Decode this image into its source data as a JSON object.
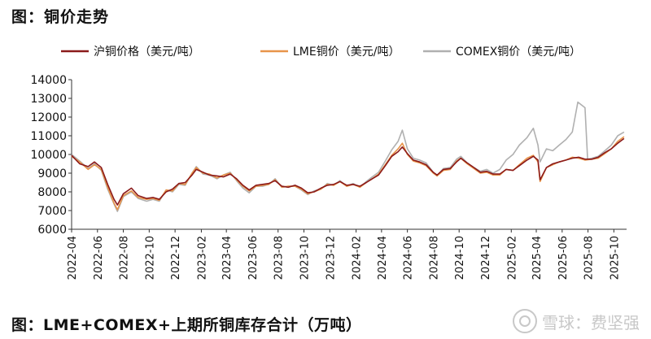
{
  "header": {
    "title": "图：铜价走势"
  },
  "footer": {
    "caption": "图：LME+COMEX+上期所铜库存合计（万吨）"
  },
  "watermark": {
    "text": "雪球：费坚强"
  },
  "chart_data": {
    "type": "line",
    "title": "",
    "xlabel": "",
    "ylabel": "",
    "ylim": [
      6000,
      14000
    ],
    "yticks": [
      6000,
      7000,
      8000,
      9000,
      10000,
      11000,
      12000,
      13000,
      14000
    ],
    "xrange": [
      "2022-04",
      "2025-10"
    ],
    "xticks": [
      "2022-04",
      "2022-06",
      "2022-08",
      "2022-10",
      "2022-12",
      "2023-02",
      "2023-04",
      "2023-06",
      "2023-08",
      "2023-10",
      "2023-12",
      "2024-02",
      "2024-04",
      "2024-06",
      "2024-08",
      "2024-10",
      "2024-12",
      "2025-02",
      "2025-04",
      "2025-06",
      "2025-08",
      "2025-10"
    ],
    "legend_position": "top",
    "grid": false,
    "series": [
      {
        "name": "沪铜价格（美元/吨）",
        "color": "#8b1a1a",
        "points": [
          [
            "2022-04-01",
            9950
          ],
          [
            "2022-04-20",
            9500
          ],
          [
            "2022-05-10",
            9350
          ],
          [
            "2022-05-25",
            9600
          ],
          [
            "2022-06-10",
            9300
          ],
          [
            "2022-06-25",
            8400
          ],
          [
            "2022-07-10",
            7600
          ],
          [
            "2022-07-18",
            7300
          ],
          [
            "2022-08-01",
            7900
          ],
          [
            "2022-08-20",
            8200
          ],
          [
            "2022-09-05",
            7800
          ],
          [
            "2022-09-25",
            7650
          ],
          [
            "2022-10-10",
            7700
          ],
          [
            "2022-10-25",
            7600
          ],
          [
            "2022-11-10",
            8000
          ],
          [
            "2022-11-25",
            8150
          ],
          [
            "2022-12-10",
            8450
          ],
          [
            "2022-12-25",
            8500
          ],
          [
            "2023-01-10",
            8900
          ],
          [
            "2023-01-20",
            9200
          ],
          [
            "2023-02-05",
            9050
          ],
          [
            "2023-02-20",
            8900
          ],
          [
            "2023-03-10",
            8850
          ],
          [
            "2023-03-25",
            8800
          ],
          [
            "2023-04-10",
            8950
          ],
          [
            "2023-04-25",
            8700
          ],
          [
            "2023-05-10",
            8350
          ],
          [
            "2023-05-25",
            8100
          ],
          [
            "2023-06-10",
            8350
          ],
          [
            "2023-06-25",
            8400
          ],
          [
            "2023-07-10",
            8450
          ],
          [
            "2023-07-25",
            8600
          ],
          [
            "2023-08-10",
            8300
          ],
          [
            "2023-08-25",
            8250
          ],
          [
            "2023-09-10",
            8350
          ],
          [
            "2023-09-25",
            8200
          ],
          [
            "2023-10-10",
            7950
          ],
          [
            "2023-10-25",
            8000
          ],
          [
            "2023-11-10",
            8200
          ],
          [
            "2023-11-25",
            8350
          ],
          [
            "2023-12-10",
            8400
          ],
          [
            "2023-12-25",
            8550
          ],
          [
            "2024-01-10",
            8350
          ],
          [
            "2024-01-25",
            8400
          ],
          [
            "2024-02-10",
            8300
          ],
          [
            "2024-02-25",
            8500
          ],
          [
            "2024-03-10",
            8700
          ],
          [
            "2024-03-25",
            8900
          ],
          [
            "2024-04-10",
            9400
          ],
          [
            "2024-04-25",
            9900
          ],
          [
            "2024-05-10",
            10150
          ],
          [
            "2024-05-20",
            10400
          ],
          [
            "2024-06-01",
            10050
          ],
          [
            "2024-06-15",
            9700
          ],
          [
            "2024-06-30",
            9600
          ],
          [
            "2024-07-15",
            9450
          ],
          [
            "2024-08-01",
            9050
          ],
          [
            "2024-08-10",
            8900
          ],
          [
            "2024-08-25",
            9200
          ],
          [
            "2024-09-10",
            9250
          ],
          [
            "2024-09-25",
            9600
          ],
          [
            "2024-10-05",
            9800
          ],
          [
            "2024-10-20",
            9550
          ],
          [
            "2024-11-05",
            9300
          ],
          [
            "2024-11-20",
            9050
          ],
          [
            "2024-12-05",
            9100
          ],
          [
            "2024-12-20",
            8950
          ],
          [
            "2025-01-05",
            8950
          ],
          [
            "2025-01-20",
            9200
          ],
          [
            "2025-02-05",
            9150
          ],
          [
            "2025-02-20",
            9400
          ],
          [
            "2025-03-10",
            9700
          ],
          [
            "2025-03-25",
            9900
          ],
          [
            "2025-04-05",
            9700
          ],
          [
            "2025-04-10",
            8650
          ],
          [
            "2025-04-25",
            9300
          ],
          [
            "2025-05-10",
            9500
          ],
          [
            "2025-05-25",
            9600
          ],
          [
            "2025-06-10",
            9700
          ],
          [
            "2025-06-25",
            9800
          ],
          [
            "2025-07-10",
            9850
          ],
          [
            "2025-07-25",
            9750
          ],
          [
            "2025-08-10",
            9750
          ],
          [
            "2025-08-25",
            9850
          ],
          [
            "2025-09-10",
            10100
          ],
          [
            "2025-09-25",
            10300
          ],
          [
            "2025-10-10",
            10600
          ],
          [
            "2025-10-25",
            10850
          ]
        ]
      },
      {
        "name": "LME铜价（美元/吨）",
        "color": "#e8944a",
        "points": [
          [
            "2022-04-01",
            9900
          ],
          [
            "2022-04-20",
            9600
          ],
          [
            "2022-05-10",
            9200
          ],
          [
            "2022-05-25",
            9450
          ],
          [
            "2022-06-10",
            9200
          ],
          [
            "2022-06-25",
            8250
          ],
          [
            "2022-07-10",
            7400
          ],
          [
            "2022-07-18",
            7050
          ],
          [
            "2022-08-01",
            7800
          ],
          [
            "2022-08-20",
            8050
          ],
          [
            "2022-09-05",
            7700
          ],
          [
            "2022-09-25",
            7600
          ],
          [
            "2022-10-10",
            7650
          ],
          [
            "2022-10-25",
            7550
          ],
          [
            "2022-11-10",
            8100
          ],
          [
            "2022-11-25",
            8050
          ],
          [
            "2022-12-10",
            8450
          ],
          [
            "2022-12-25",
            8400
          ],
          [
            "2023-01-10",
            9000
          ],
          [
            "2023-01-20",
            9300
          ],
          [
            "2023-02-05",
            9000
          ],
          [
            "2023-02-20",
            8950
          ],
          [
            "2023-03-10",
            8750
          ],
          [
            "2023-03-25",
            8900
          ],
          [
            "2023-04-10",
            9000
          ],
          [
            "2023-04-25",
            8650
          ],
          [
            "2023-05-10",
            8300
          ],
          [
            "2023-05-25",
            8050
          ],
          [
            "2023-06-10",
            8300
          ],
          [
            "2023-06-25",
            8350
          ],
          [
            "2023-07-10",
            8400
          ],
          [
            "2023-07-25",
            8650
          ],
          [
            "2023-08-10",
            8250
          ],
          [
            "2023-08-25",
            8300
          ],
          [
            "2023-09-10",
            8300
          ],
          [
            "2023-09-25",
            8150
          ],
          [
            "2023-10-10",
            7900
          ],
          [
            "2023-10-25",
            8000
          ],
          [
            "2023-11-10",
            8150
          ],
          [
            "2023-11-25",
            8400
          ],
          [
            "2023-12-10",
            8350
          ],
          [
            "2023-12-25",
            8550
          ],
          [
            "2024-01-10",
            8300
          ],
          [
            "2024-01-25",
            8400
          ],
          [
            "2024-02-10",
            8250
          ],
          [
            "2024-02-25",
            8500
          ],
          [
            "2024-03-10",
            8700
          ],
          [
            "2024-03-25",
            8950
          ],
          [
            "2024-04-10",
            9450
          ],
          [
            "2024-04-25",
            9950
          ],
          [
            "2024-05-10",
            10300
          ],
          [
            "2024-05-20",
            10600
          ],
          [
            "2024-06-01",
            10000
          ],
          [
            "2024-06-15",
            9650
          ],
          [
            "2024-06-30",
            9550
          ],
          [
            "2024-07-15",
            9400
          ],
          [
            "2024-08-01",
            9000
          ],
          [
            "2024-08-10",
            8850
          ],
          [
            "2024-08-25",
            9150
          ],
          [
            "2024-09-10",
            9200
          ],
          [
            "2024-09-25",
            9650
          ],
          [
            "2024-10-05",
            9800
          ],
          [
            "2024-10-20",
            9500
          ],
          [
            "2024-11-05",
            9250
          ],
          [
            "2024-11-20",
            9000
          ],
          [
            "2024-12-05",
            9050
          ],
          [
            "2024-12-20",
            8900
          ],
          [
            "2025-01-05",
            8900
          ],
          [
            "2025-01-20",
            9200
          ],
          [
            "2025-02-05",
            9150
          ],
          [
            "2025-02-20",
            9450
          ],
          [
            "2025-03-10",
            9800
          ],
          [
            "2025-03-25",
            9950
          ],
          [
            "2025-04-05",
            9600
          ],
          [
            "2025-04-10",
            8550
          ],
          [
            "2025-04-25",
            9300
          ],
          [
            "2025-05-10",
            9450
          ],
          [
            "2025-05-25",
            9600
          ],
          [
            "2025-06-10",
            9700
          ],
          [
            "2025-06-25",
            9850
          ],
          [
            "2025-07-10",
            9800
          ],
          [
            "2025-07-25",
            9700
          ],
          [
            "2025-08-10",
            9750
          ],
          [
            "2025-08-25",
            9800
          ],
          [
            "2025-09-10",
            10050
          ],
          [
            "2025-09-25",
            10300
          ],
          [
            "2025-10-10",
            10700
          ],
          [
            "2025-10-25",
            10950
          ]
        ]
      },
      {
        "name": "COMEX铜价（美元/吨）",
        "color": "#b0b0b0",
        "points": [
          [
            "2022-04-01",
            10000
          ],
          [
            "2022-04-20",
            9650
          ],
          [
            "2022-05-10",
            9250
          ],
          [
            "2022-05-25",
            9500
          ],
          [
            "2022-06-10",
            9150
          ],
          [
            "2022-06-25",
            8150
          ],
          [
            "2022-07-10",
            7350
          ],
          [
            "2022-07-18",
            6950
          ],
          [
            "2022-08-01",
            7750
          ],
          [
            "2022-08-20",
            8000
          ],
          [
            "2022-09-05",
            7650
          ],
          [
            "2022-09-25",
            7500
          ],
          [
            "2022-10-10",
            7600
          ],
          [
            "2022-10-25",
            7500
          ],
          [
            "2022-11-10",
            8100
          ],
          [
            "2022-11-25",
            8000
          ],
          [
            "2022-12-10",
            8400
          ],
          [
            "2022-12-25",
            8350
          ],
          [
            "2023-01-10",
            9000
          ],
          [
            "2023-01-20",
            9350
          ],
          [
            "2023-02-05",
            8950
          ],
          [
            "2023-02-20",
            8900
          ],
          [
            "2023-03-10",
            8700
          ],
          [
            "2023-03-25",
            8900
          ],
          [
            "2023-04-10",
            9050
          ],
          [
            "2023-04-25",
            8600
          ],
          [
            "2023-05-10",
            8200
          ],
          [
            "2023-05-25",
            7950
          ],
          [
            "2023-06-10",
            8300
          ],
          [
            "2023-06-25",
            8300
          ],
          [
            "2023-07-10",
            8400
          ],
          [
            "2023-07-25",
            8700
          ],
          [
            "2023-08-10",
            8250
          ],
          [
            "2023-08-25",
            8300
          ],
          [
            "2023-09-10",
            8300
          ],
          [
            "2023-09-25",
            8100
          ],
          [
            "2023-10-10",
            7850
          ],
          [
            "2023-10-25",
            8050
          ],
          [
            "2023-11-10",
            8150
          ],
          [
            "2023-11-25",
            8450
          ],
          [
            "2023-12-10",
            8350
          ],
          [
            "2023-12-25",
            8600
          ],
          [
            "2024-01-10",
            8300
          ],
          [
            "2024-01-25",
            8450
          ],
          [
            "2024-02-10",
            8250
          ],
          [
            "2024-02-25",
            8550
          ],
          [
            "2024-03-10",
            8800
          ],
          [
            "2024-03-25",
            9050
          ],
          [
            "2024-04-10",
            9650
          ],
          [
            "2024-04-25",
            10250
          ],
          [
            "2024-05-10",
            10700
          ],
          [
            "2024-05-20",
            11300
          ],
          [
            "2024-06-01",
            10300
          ],
          [
            "2024-06-15",
            9800
          ],
          [
            "2024-06-30",
            9700
          ],
          [
            "2024-07-15",
            9550
          ],
          [
            "2024-08-01",
            9050
          ],
          [
            "2024-08-10",
            8850
          ],
          [
            "2024-08-25",
            9250
          ],
          [
            "2024-09-10",
            9300
          ],
          [
            "2024-09-25",
            9750
          ],
          [
            "2024-10-05",
            9900
          ],
          [
            "2024-10-20",
            9550
          ],
          [
            "2024-11-05",
            9300
          ],
          [
            "2024-11-20",
            9100
          ],
          [
            "2024-12-05",
            9200
          ],
          [
            "2024-12-20",
            9000
          ],
          [
            "2025-01-05",
            9200
          ],
          [
            "2025-01-20",
            9700
          ],
          [
            "2025-02-05",
            10000
          ],
          [
            "2025-02-20",
            10500
          ],
          [
            "2025-03-10",
            10900
          ],
          [
            "2025-03-25",
            11400
          ],
          [
            "2025-04-05",
            10500
          ],
          [
            "2025-04-10",
            9600
          ],
          [
            "2025-04-25",
            10300
          ],
          [
            "2025-05-10",
            10200
          ],
          [
            "2025-05-25",
            10500
          ],
          [
            "2025-06-10",
            10800
          ],
          [
            "2025-06-25",
            11200
          ],
          [
            "2025-07-08",
            12800
          ],
          [
            "2025-07-25",
            12500
          ],
          [
            "2025-07-31",
            9750
          ],
          [
            "2025-08-10",
            9800
          ],
          [
            "2025-08-25",
            9900
          ],
          [
            "2025-09-10",
            10200
          ],
          [
            "2025-09-25",
            10500
          ],
          [
            "2025-10-10",
            11000
          ],
          [
            "2025-10-25",
            11200
          ]
        ]
      }
    ]
  }
}
